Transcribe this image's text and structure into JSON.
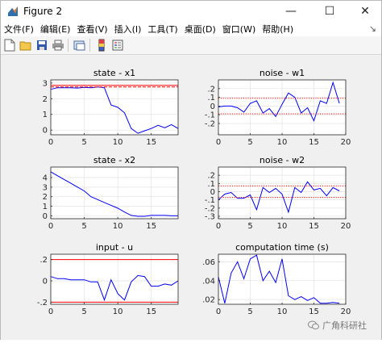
{
  "window": {
    "title": "Figure 2",
    "controls": {
      "minimize": "—",
      "maximize": "☐",
      "close": "✕"
    }
  },
  "menubar": {
    "items": [
      "文件(F)",
      "编辑(E)",
      "查看(V)",
      "插入(I)",
      "工具(T)",
      "桌面(D)",
      "窗口(W)",
      "帮助(H)"
    ],
    "pin": "↘"
  },
  "toolbar": {
    "icons": [
      "new-figure-icon",
      "open-icon",
      "save-icon",
      "print-icon",
      "link-plot-icon",
      "colorbar-icon",
      "legend-icon"
    ]
  },
  "watermark": {
    "text": "广角科研社"
  },
  "chart_data": [
    {
      "type": "line",
      "title": "state - x1",
      "xlim": [
        0,
        19
      ],
      "ylim": [
        -0.3,
        3.2
      ],
      "xticks": [
        0,
        5,
        10,
        15
      ],
      "yticks": [
        0,
        1,
        2,
        3
      ],
      "grid": true,
      "series": [
        {
          "color": "#0000ff",
          "style": "solid",
          "x": [
            0,
            1,
            2,
            3,
            4,
            5,
            6,
            7,
            8,
            9,
            10,
            11,
            12,
            13,
            14,
            15,
            16,
            17,
            18,
            19
          ],
          "y": [
            2.6,
            2.7,
            2.7,
            2.7,
            2.68,
            2.72,
            2.7,
            2.75,
            2.7,
            1.6,
            1.45,
            1.1,
            0.1,
            -0.2,
            -0.05,
            0.1,
            0.3,
            0.15,
            0.35,
            0.1
          ]
        },
        {
          "color": "#ff0000",
          "style": "solid",
          "x": [
            0,
            19
          ],
          "y": [
            2.85,
            2.85
          ]
        },
        {
          "color": "#ff0000",
          "style": "dashed",
          "x": [
            0,
            19
          ],
          "y": [
            2.75,
            2.75
          ]
        }
      ]
    },
    {
      "type": "line",
      "title": "noise - w1",
      "xlim": [
        0,
        20
      ],
      "ylim": [
        -0.33,
        0.3
      ],
      "xticks": [
        0,
        5,
        10,
        15,
        20
      ],
      "yticks": [
        -0.2,
        -0.1,
        0,
        0.1,
        0.2
      ],
      "grid": true,
      "series": [
        {
          "color": "#0000ff",
          "style": "solid",
          "x": [
            0,
            1,
            2,
            3,
            4,
            5,
            6,
            7,
            8,
            9,
            10,
            11,
            12,
            13,
            14,
            15,
            16,
            17,
            18,
            19
          ],
          "y": [
            -0.01,
            0.0,
            0.0,
            -0.02,
            -0.07,
            0.03,
            0.06,
            -0.08,
            -0.03,
            -0.12,
            0.02,
            0.15,
            0.1,
            -0.08,
            -0.02,
            -0.17,
            0.06,
            0.03,
            0.27,
            0.03
          ]
        },
        {
          "color": "#ff0000",
          "style": "dotted",
          "x": [
            0,
            20
          ],
          "y": [
            0.09,
            0.09
          ]
        },
        {
          "color": "#ff0000",
          "style": "dotted",
          "x": [
            0,
            20
          ],
          "y": [
            -0.09,
            -0.09
          ]
        }
      ]
    },
    {
      "type": "line",
      "title": "state - x2",
      "xlim": [
        0,
        19
      ],
      "ylim": [
        -0.3,
        5.1
      ],
      "xticks": [
        0,
        5,
        10,
        15
      ],
      "yticks": [
        0,
        1,
        2,
        3,
        4
      ],
      "grid": true,
      "series": [
        {
          "color": "#0000ff",
          "style": "solid",
          "x": [
            0,
            1,
            2,
            3,
            4,
            5,
            6,
            7,
            8,
            9,
            10,
            11,
            12,
            13,
            14,
            15,
            16,
            17,
            18,
            19
          ],
          "y": [
            4.6,
            4.2,
            3.8,
            3.4,
            3.0,
            2.6,
            2.0,
            1.7,
            1.4,
            1.1,
            0.8,
            0.4,
            0.05,
            -0.05,
            -0.05,
            0.05,
            0.05,
            0.05,
            0.0,
            0.0
          ]
        }
      ]
    },
    {
      "type": "line",
      "title": "noise - w2",
      "xlim": [
        0,
        20
      ],
      "ylim": [
        -0.33,
        0.3
      ],
      "xticks": [
        0,
        5,
        10,
        15,
        20
      ],
      "yticks": [
        -0.3,
        -0.2,
        -0.1,
        0,
        0.1,
        0.2
      ],
      "grid": true,
      "series": [
        {
          "color": "#0000ff",
          "style": "solid",
          "x": [
            0,
            1,
            2,
            3,
            4,
            5,
            6,
            7,
            8,
            9,
            10,
            11,
            12,
            13,
            14,
            15,
            16,
            17,
            18,
            19
          ],
          "y": [
            -0.1,
            -0.03,
            -0.01,
            -0.08,
            -0.08,
            -0.04,
            -0.22,
            0.05,
            -0.01,
            0.04,
            -0.03,
            -0.25,
            0.05,
            -0.01,
            0.12,
            0.02,
            0.04,
            -0.05,
            0.05,
            0.01
          ]
        },
        {
          "color": "#ff0000",
          "style": "dotted",
          "x": [
            0,
            20
          ],
          "y": [
            0.07,
            0.07
          ]
        },
        {
          "color": "#ff0000",
          "style": "dotted",
          "x": [
            0,
            20
          ],
          "y": [
            -0.07,
            -0.07
          ]
        }
      ]
    },
    {
      "type": "line",
      "title": "input - u",
      "xlim": [
        0,
        19
      ],
      "ylim": [
        -0.22,
        0.25
      ],
      "xticks": [
        0,
        5,
        10,
        15
      ],
      "yticks": [
        -0.2,
        0,
        0.2
      ],
      "grid": true,
      "series": [
        {
          "color": "#0000ff",
          "style": "solid",
          "x": [
            0,
            1,
            2,
            3,
            4,
            5,
            6,
            7,
            8,
            9,
            10,
            11,
            12,
            13,
            14,
            15,
            16,
            17,
            18,
            19
          ],
          "y": [
            0.04,
            0.02,
            0.02,
            0.01,
            0.01,
            0.01,
            -0.01,
            -0.01,
            -0.18,
            0.01,
            -0.12,
            -0.18,
            -0.01,
            0.05,
            0.04,
            -0.05,
            -0.05,
            -0.03,
            -0.04,
            0.0
          ]
        },
        {
          "color": "#ff0000",
          "style": "solid",
          "x": [
            0,
            19
          ],
          "y": [
            0.2,
            0.2
          ]
        },
        {
          "color": "#ff0000",
          "style": "solid",
          "x": [
            0,
            19
          ],
          "y": [
            -0.2,
            -0.2
          ]
        }
      ]
    },
    {
      "type": "line",
      "title": "computation time (s)",
      "xlim": [
        0,
        20
      ],
      "ylim": [
        0.015,
        0.068
      ],
      "xticks": [
        0,
        5,
        10,
        15,
        20
      ],
      "yticks": [
        0.02,
        0.04,
        0.06
      ],
      "grid": true,
      "series": [
        {
          "color": "#0000ff",
          "style": "solid",
          "x": [
            0,
            1,
            2,
            3,
            4,
            5,
            6,
            7,
            8,
            9,
            10,
            11,
            12,
            13,
            14,
            15,
            16,
            17,
            18,
            19
          ],
          "y": [
            0.044,
            0.016,
            0.048,
            0.06,
            0.042,
            0.063,
            0.067,
            0.04,
            0.05,
            0.038,
            0.063,
            0.024,
            0.02,
            0.023,
            0.019,
            0.022,
            0.016,
            0.016,
            0.017,
            0.016
          ]
        }
      ]
    }
  ]
}
